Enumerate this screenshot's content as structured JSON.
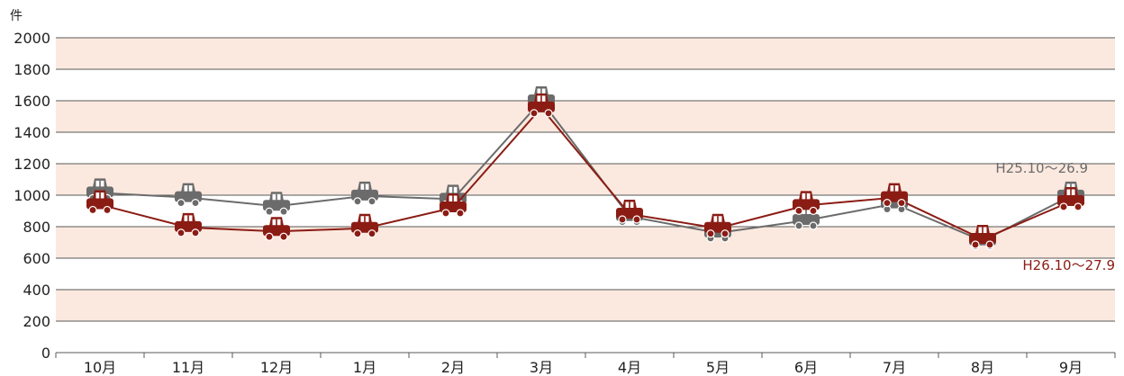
{
  "chart_data": {
    "type": "line",
    "categories": [
      "10月",
      "11月",
      "12月",
      "1月",
      "2月",
      "3月",
      "4月",
      "5月",
      "6月",
      "7月",
      "8月",
      "9月"
    ],
    "series": [
      {
        "name": "H25.10〜26.9",
        "color": "#6b6b6b",
        "values": [
          1015,
          985,
          930,
          995,
          975,
          1600,
          865,
          760,
          840,
          945,
          710,
          995
        ]
      },
      {
        "name": "H26.10〜27.9",
        "color": "#8b1c14",
        "values": [
          940,
          795,
          770,
          790,
          920,
          1555,
          880,
          790,
          935,
          985,
          720,
          960
        ]
      }
    ],
    "ylim": [
      0,
      2000
    ],
    "yticks": [
      0,
      200,
      400,
      600,
      800,
      1000,
      1200,
      1400,
      1600,
      1800,
      2000
    ],
    "y_unit": "件",
    "band_color": "#fbe9df",
    "grid": true,
    "marker": "car-icon"
  }
}
